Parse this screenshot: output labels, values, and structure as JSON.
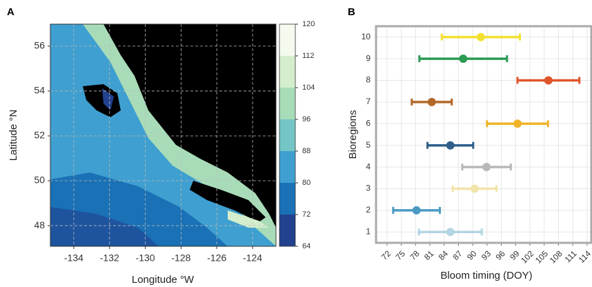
{
  "chart_data": [
    {
      "type": "map",
      "panel": "A",
      "x_label": "Longitude °W",
      "y_label": "Latitude °N",
      "xlim": [
        -135.31,
        -122.69
      ],
      "ylim": [
        47.08,
        56.98
      ],
      "xticks": [
        -134,
        -132,
        -130,
        -128,
        -126,
        -124
      ],
      "yticks": [
        48,
        50,
        52,
        54,
        56
      ],
      "grid": true,
      "colorbar_lim": [
        64,
        120
      ],
      "colorbar_ticks": [
        64,
        72,
        80,
        88,
        96,
        104,
        112,
        120
      ],
      "colorbar_colors": [
        "#22418f",
        "#1a71b5",
        "#3f9fd0",
        "#74c6c6",
        "#a8dcb8",
        "#d4eecc",
        "#f4faee"
      ]
    },
    {
      "type": "errorbar",
      "panel": "B",
      "x_label": "Bloom timing (DOY)",
      "y_label": "Bioregions",
      "categories": [
        1,
        2,
        3,
        4,
        5,
        6,
        7,
        8,
        9,
        10
      ],
      "values": [
        85.3,
        78.2,
        90.4,
        92.9,
        85.3,
        99.4,
        81.4,
        105.9,
        88,
        91.7
      ],
      "errors": [
        6.6,
        4.9,
        4.6,
        5.1,
        4.8,
        6.4,
        4.2,
        6.5,
        9.2,
        8.2
      ],
      "colors": [
        "#b3d4e3",
        "#4a9bc4",
        "#f1e4a9",
        "#b8b8b8",
        "#2f5f8a",
        "#efb429",
        "#b3682a",
        "#e0552a",
        "#2a9b53",
        "#f2e130"
      ],
      "xlim": [
        69.7,
        114.9
      ],
      "xticks": [
        72,
        75,
        78,
        81,
        84,
        87,
        90,
        93,
        96,
        99,
        102,
        105,
        108,
        111,
        114
      ],
      "grid": true
    }
  ]
}
